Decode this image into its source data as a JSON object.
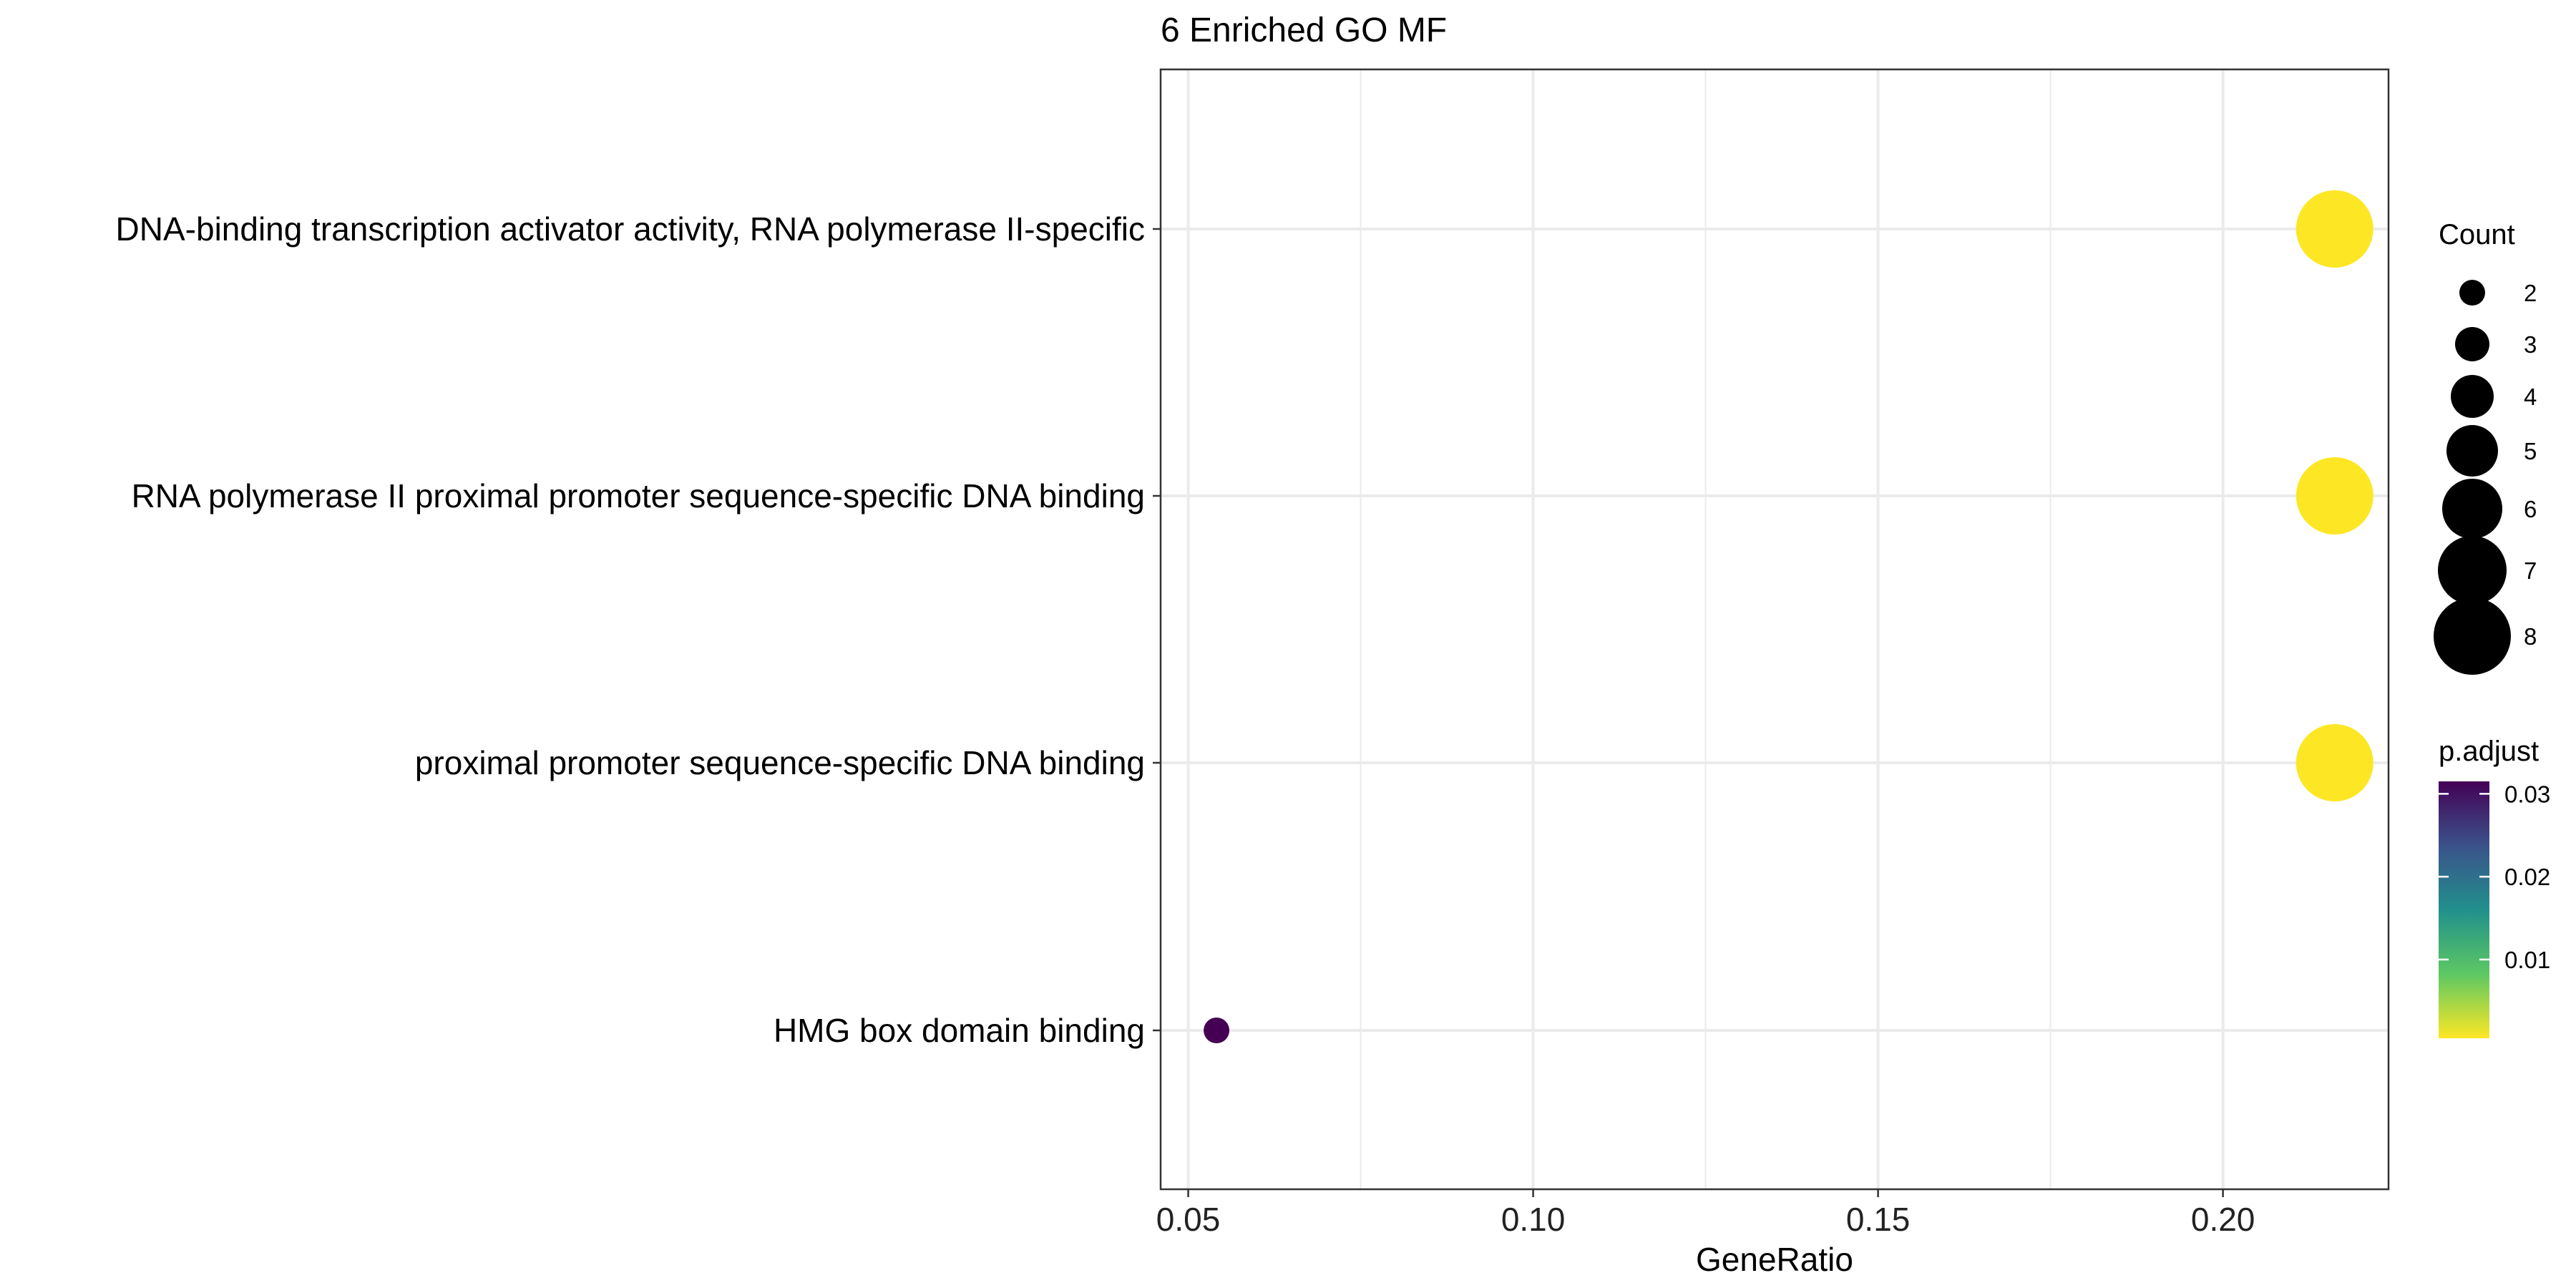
{
  "chart_data": {
    "type": "scatter",
    "title": "6 Enriched GO MF",
    "xlabel": "GeneRatio",
    "ylabel": "",
    "xlim": [
      0.046,
      0.224
    ],
    "x_ticks": [
      0.05,
      0.1,
      0.15,
      0.2
    ],
    "x_tick_labels": [
      "0.05",
      "0.10",
      "0.15",
      "0.20"
    ],
    "x_minor_ticks": [
      0.075,
      0.125,
      0.175
    ],
    "grid": true,
    "categories": [
      "DNA-binding transcription activator activity, RNA polymerase II-specific",
      "RNA polymerase II proximal promoter sequence-specific DNA binding",
      "proximal promoter sequence-specific DNA binding",
      "HMG box domain binding"
    ],
    "points": [
      {
        "category": "DNA-binding transcription activator activity, RNA polymerase II-specific",
        "x": 0.2162,
        "count": 8,
        "p_adjust": 0.0005
      },
      {
        "category": "RNA polymerase II proximal promoter sequence-specific DNA binding",
        "x": 0.2162,
        "count": 8,
        "p_adjust": 0.0005
      },
      {
        "category": "proximal promoter sequence-specific DNA binding",
        "x": 0.2162,
        "count": 8,
        "p_adjust": 0.0005
      },
      {
        "category": "HMG box domain binding",
        "x": 0.0541,
        "count": 2,
        "p_adjust": 0.0315
      }
    ],
    "size_legend": {
      "title": "Count",
      "values": [
        2,
        3,
        4,
        5,
        6,
        7,
        8
      ]
    },
    "color_legend": {
      "title": "p.adjust",
      "range": [
        0.0005,
        0.0315
      ],
      "ticks": [
        0.01,
        0.02,
        0.03
      ],
      "tick_labels": [
        "0.01",
        "0.02",
        "0.03"
      ],
      "colors_low_to_high": [
        "#FDE725",
        "#5DC863",
        "#21908C",
        "#3B528B",
        "#440154"
      ]
    },
    "legend_placement": "right"
  }
}
